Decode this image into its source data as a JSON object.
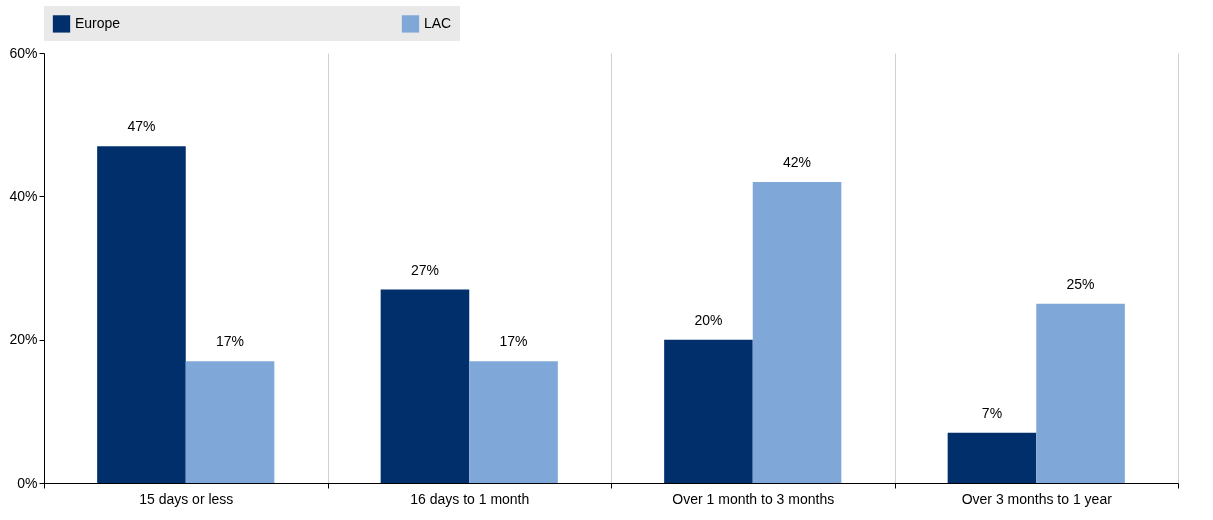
{
  "chart_data": {
    "type": "bar",
    "categories": [
      "15 days or less",
      "16 days to 1 month",
      "Over 1 month to 3 months",
      "Over 3 months to 1 year"
    ],
    "series": [
      {
        "name": "Europe",
        "color": "#002f6c",
        "values": [
          47,
          27,
          20,
          7
        ],
        "value_labels": [
          "47%",
          "27%",
          "20%",
          "7%"
        ]
      },
      {
        "name": "LAC",
        "color": "#7fa8d9",
        "values": [
          17,
          17,
          42,
          25
        ],
        "value_labels": [
          "17%",
          "17%",
          "42%",
          "25%"
        ]
      }
    ],
    "ylim": [
      0,
      60
    ],
    "yticks": [
      {
        "value": 0,
        "label": "0%"
      },
      {
        "value": 20,
        "label": "20%"
      },
      {
        "value": 40,
        "label": "40%"
      },
      {
        "value": 60,
        "label": "60%"
      }
    ],
    "grid": "x",
    "legend": "top"
  }
}
